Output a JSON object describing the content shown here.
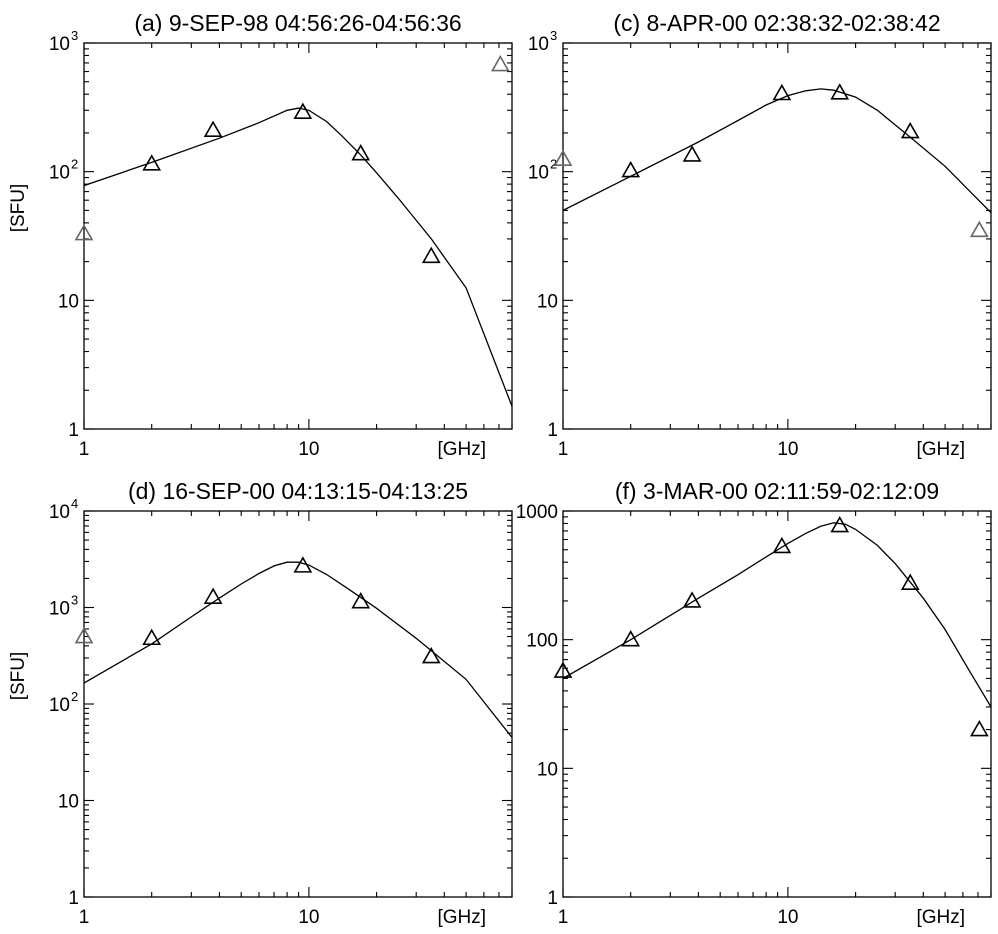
{
  "chart_data": [
    {
      "id": "a",
      "type": "scatter",
      "title": "(a) 9-SEP-98 04:56:26-04:56:36",
      "xlabel": "[GHz]",
      "ylabel": "[SFU]",
      "x_scale": "log",
      "y_scale": "log",
      "xlim": [
        1,
        80
      ],
      "ylim": [
        1,
        1000
      ],
      "x_ticks": [
        {
          "value": 1,
          "label": "1"
        },
        {
          "value": 10,
          "label": "10"
        }
      ],
      "y_ticks": [
        {
          "value": 1,
          "label": "1"
        },
        {
          "value": 10,
          "label": "10"
        },
        {
          "value": 100,
          "label": "10",
          "sup": "2"
        },
        {
          "value": 1000,
          "label": "10",
          "sup": "3"
        }
      ],
      "series": [
        {
          "kind": "points",
          "color": "#000000",
          "x": [
            2,
            3.75,
            9.4,
            17,
            35
          ],
          "y": [
            115,
            210,
            290,
            138,
            22
          ]
        },
        {
          "kind": "points",
          "color": "#666666",
          "x": [
            1,
            71
          ],
          "y": [
            33,
            680
          ]
        },
        {
          "kind": "fit",
          "color": "#000000",
          "x": [
            1,
            2,
            4,
            6,
            8,
            9,
            10,
            12,
            14,
            17,
            20,
            25,
            35,
            50,
            80
          ],
          "y": [
            78,
            118,
            182,
            240,
            300,
            312,
            300,
            245,
            190,
            135,
            98,
            62,
            30,
            12.5,
            1.5
          ]
        }
      ]
    },
    {
      "id": "c",
      "type": "scatter",
      "title": "(c) 8-APR-00 02:38:32-02:38:42",
      "xlabel": "[GHz]",
      "ylabel": "",
      "x_scale": "log",
      "y_scale": "log",
      "xlim": [
        1,
        80
      ],
      "ylim": [
        1,
        1000
      ],
      "x_ticks": [
        {
          "value": 1,
          "label": "1"
        },
        {
          "value": 10,
          "label": "10"
        }
      ],
      "y_ticks": [
        {
          "value": 1,
          "label": "1"
        },
        {
          "value": 10,
          "label": "10"
        },
        {
          "value": 100,
          "label": "10",
          "sup": "2"
        },
        {
          "value": 1000,
          "label": "10",
          "sup": "3"
        }
      ],
      "series": [
        {
          "kind": "points",
          "color": "#000000",
          "x": [
            2,
            3.75,
            9.4,
            17,
            35
          ],
          "y": [
            102,
            135,
            405,
            410,
            205
          ]
        },
        {
          "kind": "points",
          "color": "#666666",
          "x": [
            1,
            71
          ],
          "y": [
            125,
            35
          ]
        },
        {
          "kind": "fit",
          "color": "#000000",
          "x": [
            1,
            2,
            4,
            6,
            8,
            10,
            12,
            14,
            16,
            20,
            25,
            35,
            50,
            80
          ],
          "y": [
            50,
            92,
            170,
            250,
            330,
            390,
            425,
            440,
            430,
            380,
            300,
            185,
            110,
            48
          ]
        }
      ]
    },
    {
      "id": "d",
      "type": "scatter",
      "title": "(d) 16-SEP-00 04:13:15-04:13:25",
      "xlabel": "[GHz]",
      "ylabel": "[SFU]",
      "x_scale": "log",
      "y_scale": "log",
      "xlim": [
        1,
        80
      ],
      "ylim": [
        1,
        10000
      ],
      "x_ticks": [
        {
          "value": 1,
          "label": "1"
        },
        {
          "value": 10,
          "label": "10"
        }
      ],
      "y_ticks": [
        {
          "value": 1,
          "label": "1"
        },
        {
          "value": 10,
          "label": "10"
        },
        {
          "value": 100,
          "label": "10",
          "sup": "2"
        },
        {
          "value": 1000,
          "label": "10",
          "sup": "3"
        },
        {
          "value": 10000,
          "label": "10",
          "sup": "4"
        }
      ],
      "series": [
        {
          "kind": "points",
          "color": "#000000",
          "x": [
            2,
            3.75,
            9.4,
            17,
            35
          ],
          "y": [
            480,
            1280,
            2700,
            1150,
            310
          ]
        },
        {
          "kind": "points",
          "color": "#666666",
          "x": [
            1
          ],
          "y": [
            500
          ]
        },
        {
          "kind": "fit",
          "color": "#000000",
          "x": [
            1,
            2,
            3,
            4,
            5,
            6,
            7,
            8,
            9,
            10,
            12,
            15,
            20,
            30,
            50,
            80
          ],
          "y": [
            165,
            420,
            800,
            1250,
            1750,
            2250,
            2700,
            2950,
            2950,
            2750,
            2200,
            1550,
            980,
            480,
            180,
            45
          ]
        }
      ]
    },
    {
      "id": "f",
      "type": "scatter",
      "title": "(f) 3-MAR-00 02:11:59-02:12:09",
      "xlabel": "[GHz]",
      "ylabel": "",
      "x_scale": "log",
      "y_scale": "log",
      "xlim": [
        1,
        80
      ],
      "ylim": [
        1,
        1000
      ],
      "x_ticks": [
        {
          "value": 1,
          "label": "1"
        },
        {
          "value": 10,
          "label": "10"
        }
      ],
      "y_ticks": [
        {
          "value": 1,
          "label": "1"
        },
        {
          "value": 10,
          "label": "10"
        },
        {
          "value": 100,
          "label": "100"
        },
        {
          "value": 1000,
          "label": "1000"
        }
      ],
      "series": [
        {
          "kind": "points",
          "color": "#000000",
          "x": [
            1,
            2,
            3.75,
            9.4,
            17,
            35,
            71
          ],
          "y": [
            57,
            100,
            200,
            530,
            770,
            275,
            20
          ]
        },
        {
          "kind": "fit",
          "color": "#000000",
          "x": [
            1,
            2,
            4,
            6,
            8,
            10,
            12,
            14,
            16,
            18,
            20,
            25,
            30,
            40,
            50,
            65,
            80
          ],
          "y": [
            50,
            100,
            210,
            320,
            440,
            560,
            670,
            760,
            810,
            790,
            720,
            540,
            390,
            210,
            120,
            55,
            30
          ]
        }
      ]
    }
  ]
}
